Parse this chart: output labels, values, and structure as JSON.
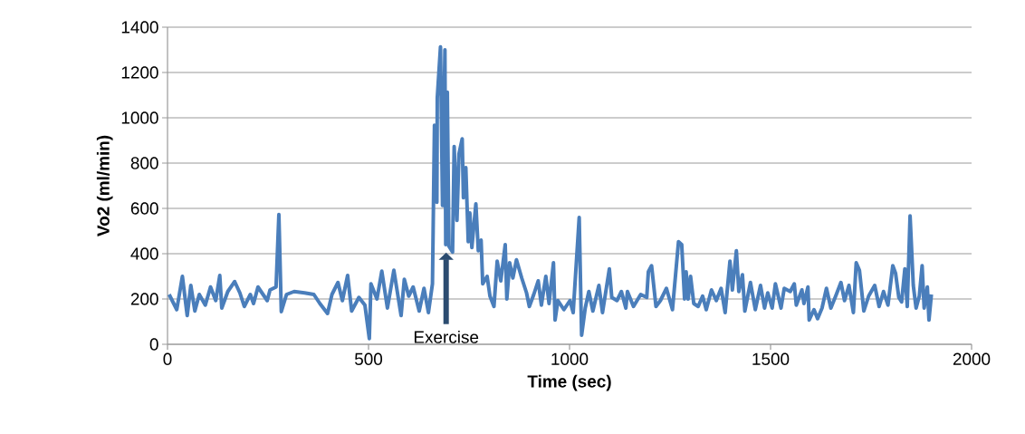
{
  "chart_data": {
    "type": "line",
    "xlabel": "Time (sec)",
    "ylabel": "Vo2 (ml/min)",
    "color": "#4a7ebb",
    "xlim": [
      0,
      2000
    ],
    "ylim": [
      0,
      1400
    ],
    "xticks": [
      0,
      500,
      1000,
      1500,
      2000
    ],
    "yticks": [
      0,
      200,
      400,
      600,
      800,
      1000,
      1200,
      1400
    ],
    "grid": "y",
    "annotations": [
      "Exercise"
    ],
    "x": [
      4,
      23,
      37,
      49,
      58,
      68,
      79,
      94,
      107,
      120,
      130,
      135,
      150,
      167,
      180,
      191,
      206,
      214,
      225,
      248,
      255,
      270,
      277,
      283,
      296,
      315,
      341,
      364,
      379,
      398,
      409,
      424,
      435,
      448,
      458,
      476,
      491,
      502,
      506,
      521,
      533,
      547,
      563,
      581,
      589,
      600,
      611,
      626,
      638,
      649,
      659,
      664,
      670,
      671,
      679,
      684,
      690,
      692,
      696,
      700,
      709,
      713,
      720,
      725,
      733,
      736,
      742,
      748,
      752,
      757,
      767,
      773,
      780,
      784,
      795,
      802,
      812,
      820,
      829,
      840,
      844,
      851,
      859,
      868,
      881,
      893,
      900,
      911,
      922,
      930,
      941,
      949,
      960,
      964,
      971,
      986,
      1001,
      1009,
      1024,
      1030,
      1039,
      1048,
      1058,
      1073,
      1082,
      1099,
      1105,
      1118,
      1129,
      1140,
      1144,
      1159,
      1177,
      1192,
      1196,
      1204,
      1215,
      1226,
      1241,
      1256,
      1271,
      1279,
      1286,
      1290,
      1295,
      1301,
      1309,
      1320,
      1331,
      1340,
      1353,
      1365,
      1377,
      1387,
      1399,
      1405,
      1415,
      1421,
      1430,
      1436,
      1450,
      1462,
      1475,
      1485,
      1493,
      1504,
      1512,
      1526,
      1534,
      1549,
      1559,
      1564,
      1578,
      1583,
      1593,
      1596,
      1608,
      1617,
      1628,
      1639,
      1650,
      1662,
      1675,
      1684,
      1695,
      1706,
      1713,
      1721,
      1732,
      1744,
      1759,
      1770,
      1781,
      1792,
      1804,
      1811,
      1819,
      1826,
      1834,
      1840,
      1847,
      1855,
      1862,
      1870,
      1877,
      1882,
      1890,
      1894,
      1900
    ],
    "values": [
      220,
      153,
      300,
      127,
      260,
      147,
      220,
      173,
      253,
      193,
      304,
      160,
      233,
      277,
      227,
      167,
      220,
      180,
      253,
      193,
      240,
      253,
      573,
      144,
      220,
      233,
      227,
      220,
      180,
      136,
      220,
      273,
      193,
      304,
      147,
      207,
      173,
      25,
      267,
      200,
      323,
      160,
      327,
      127,
      287,
      213,
      253,
      147,
      247,
      140,
      267,
      967,
      627,
      1087,
      1313,
      613,
      1300,
      440,
      1113,
      433,
      407,
      873,
      547,
      840,
      907,
      647,
      780,
      453,
      580,
      427,
      620,
      413,
      460,
      267,
      300,
      213,
      167,
      367,
      280,
      440,
      200,
      360,
      293,
      373,
      293,
      227,
      167,
      220,
      280,
      173,
      300,
      180,
      360,
      107,
      193,
      153,
      193,
      140,
      560,
      40,
      160,
      233,
      147,
      260,
      140,
      333,
      207,
      193,
      233,
      160,
      233,
      167,
      220,
      207,
      320,
      347,
      167,
      193,
      247,
      153,
      453,
      440,
      200,
      320,
      200,
      300,
      180,
      167,
      213,
      153,
      240,
      193,
      247,
      140,
      367,
      240,
      413,
      233,
      307,
      147,
      273,
      153,
      260,
      160,
      227,
      160,
      267,
      160,
      247,
      233,
      267,
      173,
      240,
      180,
      253,
      107,
      153,
      113,
      160,
      247,
      160,
      213,
      273,
      193,
      260,
      140,
      360,
      327,
      147,
      213,
      260,
      167,
      233,
      173,
      347,
      313,
      207,
      187,
      333,
      167,
      567,
      260,
      160,
      213,
      347,
      160,
      253,
      107,
      220
    ]
  }
}
